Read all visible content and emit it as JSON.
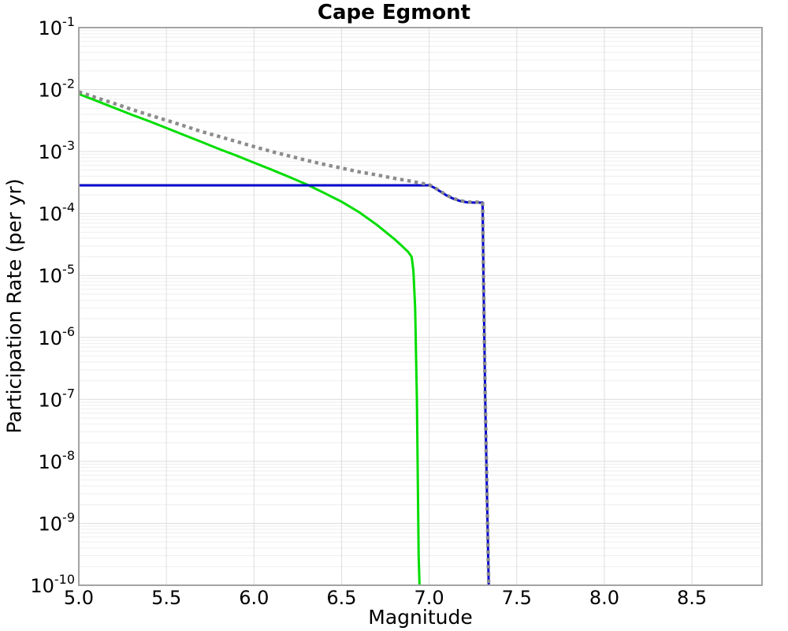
{
  "title": "Cape Egmont",
  "axes": {
    "xlabel": "Magnitude",
    "ylabel": "Participation Rate (per yr)",
    "x_tick_labels": [
      "5.0",
      "5.5",
      "6.0",
      "6.5",
      "7.0",
      "7.5",
      "8.0",
      "8.5"
    ],
    "x_tick_values": [
      5.0,
      5.5,
      6.0,
      6.5,
      7.0,
      7.5,
      8.0,
      8.5
    ],
    "y_tick_base": "10",
    "y_tick_exponents": [
      "-1",
      "-2",
      "-3",
      "-4",
      "-5",
      "-6",
      "-7",
      "-8",
      "-9",
      "-10"
    ],
    "grid": true
  },
  "colors": {
    "grid_major": "#dedede",
    "grid_minor": "#eeeeee",
    "plot_border": "#a3a3a3",
    "background": "#ffffff",
    "gray_series": "#8c8c8c",
    "blue_series": "#0000cd",
    "green_series": "#00dd00"
  },
  "chart_data": {
    "type": "line",
    "title": "Cape Egmont",
    "xlabel": "Magnitude",
    "ylabel": "Participation Rate (per yr)",
    "xlim": [
      5.0,
      8.9
    ],
    "ylim": [
      1e-10,
      0.1
    ],
    "x_scale": "linear",
    "y_scale": "log",
    "grid": true,
    "legend": null,
    "series": [
      {
        "name": "green-solid-curve",
        "color": "#00dd00",
        "style": "solid",
        "width": 3,
        "points": [
          [
            5.0,
            0.0085
          ],
          [
            5.1,
            0.0066
          ],
          [
            5.2,
            0.0051
          ],
          [
            5.3,
            0.00395
          ],
          [
            5.4,
            0.0031
          ],
          [
            5.5,
            0.0024
          ],
          [
            5.6,
            0.00185
          ],
          [
            5.7,
            0.00143
          ],
          [
            5.8,
            0.0011
          ],
          [
            5.9,
            0.00086
          ],
          [
            6.0,
            0.00066
          ],
          [
            6.1,
            0.00051
          ],
          [
            6.2,
            0.00039
          ],
          [
            6.3,
            0.000295
          ],
          [
            6.4,
            0.000215
          ],
          [
            6.5,
            0.000155
          ],
          [
            6.6,
            0.000105
          ],
          [
            6.7,
            6.6e-05
          ],
          [
            6.8,
            3.9e-05
          ],
          [
            6.85,
            2.9e-05
          ],
          [
            6.88,
            2.4e-05
          ],
          [
            6.9,
            2e-05
          ],
          [
            6.91,
            1.2e-05
          ],
          [
            6.92,
            3e-06
          ],
          [
            6.93,
            1e-07
          ],
          [
            6.94,
            3e-10
          ],
          [
            6.945,
            1e-10
          ]
        ]
      },
      {
        "name": "blue-solid-curve",
        "color": "#0000cd",
        "style": "solid",
        "width": 3,
        "points": [
          [
            5.0,
            0.000285
          ],
          [
            7.0,
            0.000285
          ],
          [
            7.03,
            0.00026
          ],
          [
            7.06,
            0.00023
          ],
          [
            7.1,
            0.000195
          ],
          [
            7.14,
            0.000172
          ],
          [
            7.18,
            0.000158
          ],
          [
            7.22,
            0.000151
          ],
          [
            7.26,
            0.00015
          ],
          [
            7.3,
            0.00015
          ],
          [
            7.305,
            0.00015
          ],
          [
            7.31,
            1e-05
          ],
          [
            7.32,
            1e-07
          ],
          [
            7.33,
            3e-09
          ],
          [
            7.34,
            1e-10
          ]
        ]
      },
      {
        "name": "gray-dotted-curve",
        "color": "#8c8c8c",
        "style": "dotted",
        "width": 4.4,
        "points": [
          [
            5.0,
            0.0092
          ],
          [
            5.1,
            0.0074
          ],
          [
            5.2,
            0.006
          ],
          [
            5.3,
            0.0048
          ],
          [
            5.4,
            0.0039
          ],
          [
            5.5,
            0.0032
          ],
          [
            5.6,
            0.0026
          ],
          [
            5.7,
            0.0021
          ],
          [
            5.8,
            0.00175
          ],
          [
            5.9,
            0.00145
          ],
          [
            6.0,
            0.0012
          ],
          [
            6.1,
            0.001
          ],
          [
            6.2,
            0.00085
          ],
          [
            6.3,
            0.00072
          ],
          [
            6.4,
            0.00062
          ],
          [
            6.5,
            0.00054
          ],
          [
            6.6,
            0.00047
          ],
          [
            6.7,
            0.00042
          ],
          [
            6.8,
            0.00037
          ],
          [
            6.9,
            0.00033
          ],
          [
            6.95,
            0.00031
          ],
          [
            7.0,
            0.00029
          ],
          [
            7.03,
            0.000262
          ],
          [
            7.06,
            0.000232
          ],
          [
            7.1,
            0.000197
          ],
          [
            7.14,
            0.000174
          ],
          [
            7.18,
            0.00016
          ],
          [
            7.22,
            0.000153
          ],
          [
            7.26,
            0.000152
          ],
          [
            7.3,
            0.000152
          ],
          [
            7.305,
            0.000152
          ],
          [
            7.31,
            1.05e-05
          ],
          [
            7.32,
            1.05e-07
          ],
          [
            7.33,
            3.1e-09
          ],
          [
            7.34,
            1e-10
          ]
        ]
      }
    ]
  }
}
